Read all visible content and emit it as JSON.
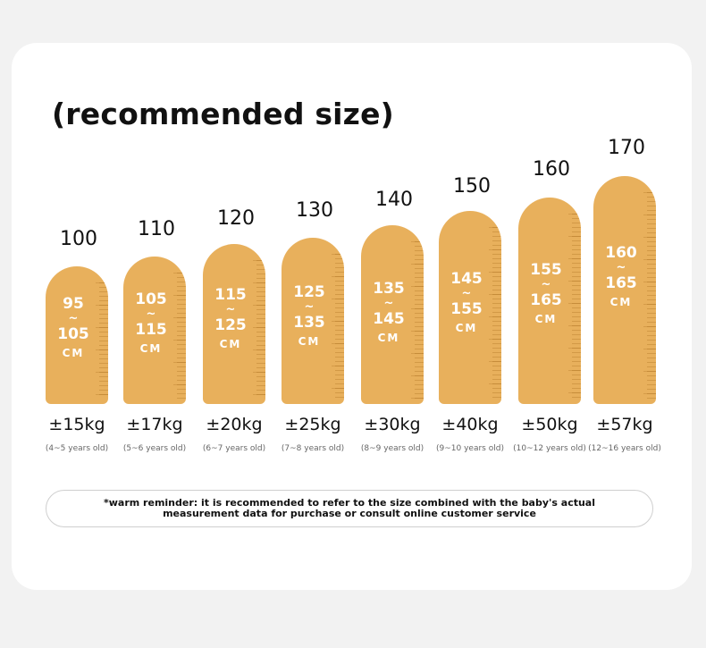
{
  "title": "(recommended size)",
  "sizes": [
    {
      "size": "100",
      "from": "95",
      "tilde": "~",
      "to": "105",
      "unit": "CM",
      "weight": "±15kg",
      "age": "(4~5 years old)"
    },
    {
      "size": "110",
      "from": "105",
      "tilde": "~",
      "to": "115",
      "unit": "CM",
      "weight": "±17kg",
      "age": "(5~6 years old)"
    },
    {
      "size": "120",
      "from": "115",
      "tilde": "~",
      "to": "125",
      "unit": "CM",
      "weight": "±20kg",
      "age": "(6~7 years old)"
    },
    {
      "size": "130",
      "from": "125",
      "tilde": "~",
      "to": "135",
      "unit": "CM",
      "weight": "±25kg",
      "age": "(7~8 years old)"
    },
    {
      "size": "140",
      "from": "135",
      "tilde": "~",
      "to": "145",
      "unit": "CM",
      "weight": "±30kg",
      "age": "(8~9 years old)"
    },
    {
      "size": "150",
      "from": "145",
      "tilde": "~",
      "to": "155",
      "unit": "CM",
      "weight": "±40kg",
      "age": "(9~10 years old)"
    },
    {
      "size": "160",
      "from": "155",
      "tilde": "~",
      "to": "165",
      "unit": "CM",
      "weight": "±50kg",
      "age": "(10~12 years old)"
    },
    {
      "size": "170",
      "from": "160",
      "tilde": "~",
      "to": "165",
      "unit": "CM",
      "weight": "±57kg",
      "age": "(12~16 years old)"
    }
  ],
  "reminder": "*warm reminder: it is recommended to refer to the size combined with the baby's actual measurement data for purchase or consult online customer service",
  "colors": {
    "pill": "#e8b05c",
    "background": "#f2f2f2",
    "card": "#ffffff"
  }
}
